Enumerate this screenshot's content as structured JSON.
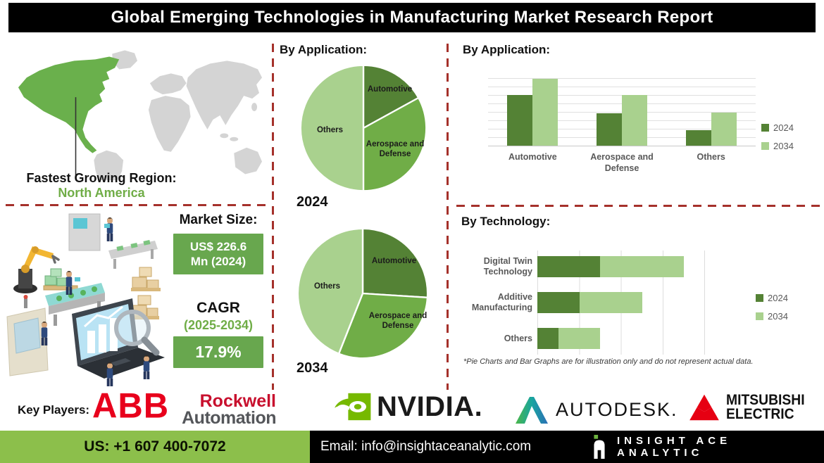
{
  "title": "Global Emerging Technologies in Manufacturing Market Research Report",
  "map": {
    "region_label": "Fastest Growing Region:",
    "region_value": "North America"
  },
  "market": {
    "size_label": "Market Size:",
    "size_line1": "US$ 226.6",
    "size_line2": "Mn (2024)",
    "cagr_label": "CAGR",
    "cagr_period": "(2025-2034)",
    "cagr_value": "17.9%"
  },
  "footnote": "*Pie Charts and Bar Graphs are for illustration only and do not represent actual data.",
  "key_players": {
    "label": "Key Players:",
    "abb": "ABB",
    "rockwell_line1": "Rockwell",
    "rockwell_line2": "Automation",
    "nvidia": "NVIDIA.",
    "autodesk": "AUTODESK.",
    "mitsubishi_line1": "MITSUBISHI",
    "mitsubishi_line2": "ELECTRIC"
  },
  "footer": {
    "phone": "US: +1 607 400-7072",
    "email": "Email: info@insightaceanalytic.com",
    "brand": "INSIGHT ACE ANALYTIC"
  },
  "colors": {
    "accent_green_dark": "#548235",
    "accent_green_mid": "#70AD47",
    "accent_green_light": "#A9D18E",
    "map_highlight_green": "#6ab04c",
    "map_gray": "#d4d4d4",
    "value_box_green": "#68a74e",
    "footer_bar_green": "#8cbf4b",
    "divider_red": "#a5312b",
    "title_bar_black": "#000000",
    "nvidia_green": "#76b900",
    "abb_red": "#e8001c",
    "rockwell_red": "#c8102e",
    "rockwell_gray": "#54565a",
    "mitsubishi_red": "#e60012"
  },
  "chart_data": [
    {
      "type": "pie",
      "title": "By Application:",
      "year_label": "2024",
      "labels": [
        "Automotive",
        "Aerospace and Defense",
        "Others"
      ],
      "values": [
        17,
        33,
        50
      ],
      "colors": [
        "#548235",
        "#70AD47",
        "#A9D18E"
      ],
      "note": "illustrative only"
    },
    {
      "type": "pie",
      "title": "By Application:",
      "year_label": "2034",
      "labels": [
        "Automotive",
        "Aerospace and Defense",
        "Others"
      ],
      "values": [
        26,
        30,
        44
      ],
      "colors": [
        "#548235",
        "#70AD47",
        "#A9D18E"
      ],
      "note": "illustrative only"
    },
    {
      "type": "bar",
      "title": "By Application:",
      "categories": [
        "Automotive",
        "Aerospace and Defense",
        "Others"
      ],
      "series": [
        {
          "name": "2024",
          "values": [
            67,
            43,
            21
          ],
          "color": "#548235"
        },
        {
          "name": "2034",
          "values": [
            89,
            67,
            44
          ],
          "color": "#A9D18E"
        }
      ],
      "ylim": [
        0,
        100
      ],
      "grid": true,
      "legend_position": "right",
      "note": "illustrative only, no numeric axis labels shown"
    },
    {
      "type": "stacked-bar-horizontal",
      "title": "By Technology:",
      "categories": [
        "Digital Twin Technology",
        "Additive Manufacturing",
        "Others"
      ],
      "series": [
        {
          "name": "2024",
          "values": [
            1.5,
            1.0,
            0.5
          ],
          "color": "#548235"
        },
        {
          "name": "2034",
          "values": [
            2.0,
            1.5,
            1.0
          ],
          "color": "#A9D18E"
        }
      ],
      "xlim": [
        0,
        4
      ],
      "grid": true,
      "legend_position": "right",
      "note": "illustrative only, no numeric axis labels shown"
    }
  ]
}
